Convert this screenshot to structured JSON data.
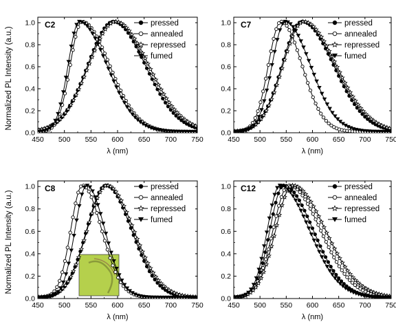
{
  "figure": {
    "ylabel": "Normalized PL Intensity (a.u.)",
    "xlabel": "λ (nm)"
  },
  "chart_data": [
    {
      "type": "line",
      "panel": "C2",
      "xlim": [
        450,
        750
      ],
      "ylim": [
        0,
        1.05
      ],
      "xticks": [
        "450",
        "500",
        "550",
        "600",
        "650",
        "700",
        "750"
      ],
      "yticks": [
        "0.0",
        "0.2",
        "0.4",
        "0.6",
        "0.8",
        "1.0"
      ],
      "xlabel": "λ (nm)",
      "legend_position": "top-right",
      "series": [
        {
          "name": "pressed",
          "marker": "filled-circle",
          "peak": 592,
          "sigma_left": 48,
          "sigma_right": 60
        },
        {
          "name": "annealed",
          "marker": "open-circle",
          "peak": 533,
          "sigma_left": 22,
          "sigma_right": 52
        },
        {
          "name": "repressed",
          "marker": "open-star",
          "peak": 596,
          "sigma_left": 50,
          "sigma_right": 62
        },
        {
          "name": "fumed",
          "marker": "filled-triangle-down",
          "peak": 528,
          "sigma_left": 21,
          "sigma_right": 52
        }
      ]
    },
    {
      "type": "line",
      "panel": "C7",
      "xlim": [
        450,
        750
      ],
      "ylim": [
        0,
        1.05
      ],
      "xticks": [
        "450",
        "500",
        "550",
        "600",
        "650",
        "700",
        "750"
      ],
      "yticks": [
        "0.0",
        "0.2",
        "0.4",
        "0.6",
        "0.8",
        "1.0"
      ],
      "xlabel": "λ (nm)",
      "legend_position": "top-right",
      "series": [
        {
          "name": "pressed",
          "marker": "filled-circle",
          "peak": 580,
          "sigma_left": 38,
          "sigma_right": 60
        },
        {
          "name": "annealed",
          "marker": "open-circle",
          "peak": 540,
          "sigma_left": 24,
          "sigma_right": 40
        },
        {
          "name": "repressed",
          "marker": "open-star",
          "peak": 583,
          "sigma_left": 39,
          "sigma_right": 62
        },
        {
          "name": "fumed",
          "marker": "filled-triangle-down",
          "peak": 548,
          "sigma_left": 25,
          "sigma_right": 48
        }
      ]
    },
    {
      "type": "line",
      "panel": "C8",
      "xlim": [
        450,
        750
      ],
      "ylim": [
        0,
        1.05
      ],
      "xticks": [
        "450",
        "500",
        "550",
        "600",
        "650",
        "700",
        "750"
      ],
      "yticks": [
        "0.0",
        "0.2",
        "0.4",
        "0.6",
        "0.8",
        "1.0"
      ],
      "xlabel": "λ (nm)",
      "legend_position": "top-right",
      "series": [
        {
          "name": "pressed",
          "marker": "filled-circle",
          "peak": 578,
          "sigma_left": 36,
          "sigma_right": 48
        },
        {
          "name": "annealed",
          "marker": "open-circle",
          "peak": 534,
          "sigma_left": 22,
          "sigma_right": 36
        },
        {
          "name": "repressed",
          "marker": "open-star",
          "peak": 580,
          "sigma_left": 37,
          "sigma_right": 50
        },
        {
          "name": "fumed",
          "marker": "filled-triangle-down",
          "peak": 542,
          "sigma_left": 22,
          "sigma_right": 34
        }
      ]
    },
    {
      "type": "line",
      "panel": "C12",
      "xlim": [
        450,
        750
      ],
      "ylim": [
        0,
        1.05
      ],
      "xticks": [
        "450",
        "500",
        "550",
        "600",
        "650",
        "700",
        "750"
      ],
      "yticks": [
        "0.0",
        "0.2",
        "0.4",
        "0.6",
        "0.8",
        "1.0"
      ],
      "xlabel": "λ (nm)",
      "legend_position": "top-right",
      "series": [
        {
          "name": "pressed",
          "marker": "filled-circle",
          "peak": 545,
          "sigma_left": 26,
          "sigma_right": 56
        },
        {
          "name": "annealed",
          "marker": "open-circle",
          "peak": 555,
          "sigma_left": 30,
          "sigma_right": 60
        },
        {
          "name": "repressed",
          "marker": "open-star",
          "peak": 562,
          "sigma_left": 32,
          "sigma_right": 62
        },
        {
          "name": "fumed",
          "marker": "filled-triangle-down",
          "peak": 538,
          "sigma_left": 24,
          "sigma_right": 56
        }
      ]
    }
  ],
  "inset": {
    "panel": "C8",
    "color": "#b5d04c",
    "description_icon": "photo-inset"
  }
}
